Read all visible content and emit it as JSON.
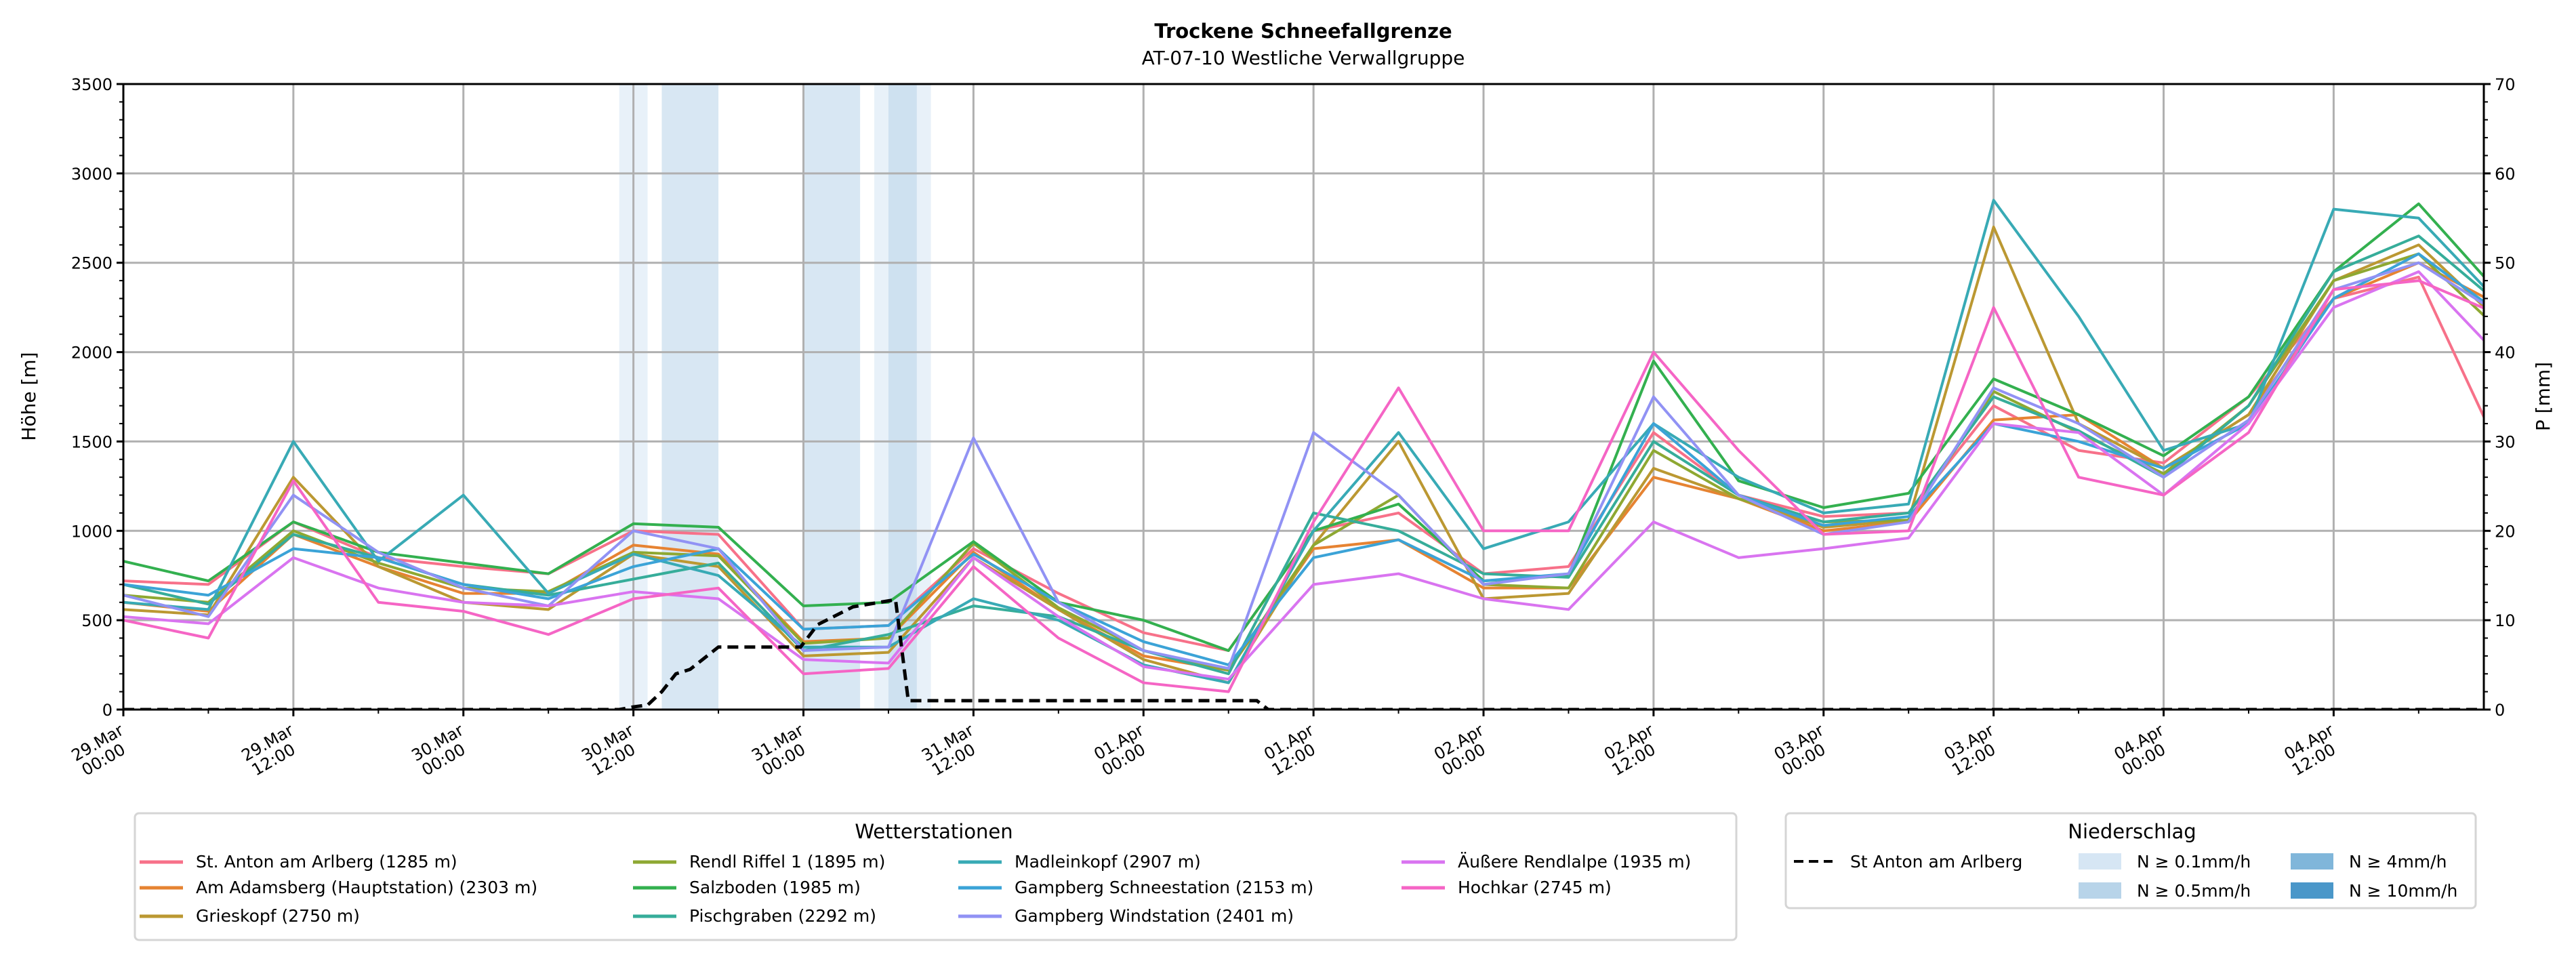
{
  "chart_data": {
    "type": "line",
    "title": "Trockene Schneefallgrenze",
    "subtitle": "AT-07-10 Westliche Verwallgruppe",
    "ylabel": "Höhe [m]",
    "ylabel_right": "P [mm]",
    "ylim": [
      0,
      3500
    ],
    "ylim_right": [
      0,
      70
    ],
    "yticks": [
      0,
      500,
      1000,
      1500,
      2000,
      2500,
      3000,
      3500
    ],
    "yticks_right": [
      0,
      10,
      20,
      30,
      40,
      50,
      60,
      70
    ],
    "x_unit": "hours since 29.Mar 00:00",
    "xlim_hours": [
      0,
      166.6
    ],
    "xticks": [
      {
        "h": 0,
        "l1": "29.Mar",
        "l2": "00:00"
      },
      {
        "h": 12,
        "l1": "29.Mar",
        "l2": "12:00"
      },
      {
        "h": 24,
        "l1": "30.Mar",
        "l2": "00:00"
      },
      {
        "h": 36,
        "l1": "30.Mar",
        "l2": "12:00"
      },
      {
        "h": 48,
        "l1": "31.Mar",
        "l2": "00:00"
      },
      {
        "h": 60,
        "l1": "31.Mar",
        "l2": "12:00"
      },
      {
        "h": 72,
        "l1": "01.Apr",
        "l2": "00:00"
      },
      {
        "h": 84,
        "l1": "01.Apr",
        "l2": "12:00"
      },
      {
        "h": 96,
        "l1": "02.Apr",
        "l2": "00:00"
      },
      {
        "h": 108,
        "l1": "02.Apr",
        "l2": "12:00"
      },
      {
        "h": 120,
        "l1": "03.Apr",
        "l2": "00:00"
      },
      {
        "h": 132,
        "l1": "03.Apr",
        "l2": "12:00"
      },
      {
        "h": 144,
        "l1": "04.Apr",
        "l2": "00:00"
      },
      {
        "h": 156,
        "l1": "04.Apr",
        "l2": "12:00"
      }
    ],
    "grid": true,
    "x_step_hours": 6,
    "series": [
      {
        "name": "St. Anton am Arlberg (1285 m)",
        "color": "#f77189",
        "values": [
          720,
          700,
          1050,
          850,
          800,
          760,
          1000,
          980,
          450,
          470,
          900,
          650,
          430,
          330,
          1000,
          1100,
          760,
          800,
          1550,
          1200,
          1080,
          1100,
          1700,
          1450,
          1380,
          1750,
          2300,
          2420,
          1400
        ]
      },
      {
        "name": "Am Adamsberg (Hauptstation) (2303 m)",
        "color": "#e68332",
        "values": [
          600,
          550,
          980,
          800,
          650,
          650,
          920,
          870,
          380,
          400,
          880,
          560,
          300,
          220,
          900,
          950,
          680,
          680,
          1300,
          1180,
          1000,
          1050,
          1620,
          1650,
          1350,
          1650,
          2300,
          2500,
          2250
        ]
      },
      {
        "name": "Grieskopf (2750 m)",
        "color": "#bb9832",
        "values": [
          560,
          530,
          1300,
          800,
          600,
          560,
          870,
          800,
          300,
          320,
          850,
          560,
          280,
          150,
          920,
          1500,
          620,
          650,
          1350,
          1180,
          1020,
          1060,
          2700,
          1600,
          1350,
          1650,
          2400,
          2600,
          2150
        ]
      },
      {
        "name": "Rendl Riffel 1 (1895 m)",
        "color": "#8ea832",
        "values": [
          640,
          600,
          1000,
          820,
          680,
          660,
          880,
          860,
          370,
          400,
          930,
          570,
          330,
          220,
          920,
          1200,
          700,
          680,
          1450,
          1180,
          1050,
          1060,
          1780,
          1550,
          1320,
          1700,
          2400,
          2550,
          2100
        ]
      },
      {
        "name": "Salzboden (1985 m)",
        "color": "#33b04f",
        "values": [
          830,
          720,
          1050,
          880,
          820,
          760,
          1040,
          1020,
          580,
          600,
          940,
          600,
          500,
          330,
          1000,
          1150,
          720,
          750,
          1950,
          1280,
          1130,
          1210,
          1850,
          1650,
          1420,
          1750,
          2450,
          2830,
          2300
        ]
      },
      {
        "name": "Pischgraben (2292 m)",
        "color": "#36ad9a",
        "values": [
          700,
          590,
          980,
          850,
          700,
          640,
          730,
          820,
          330,
          420,
          580,
          520,
          330,
          200,
          1100,
          1000,
          760,
          740,
          1500,
          1200,
          1050,
          1100,
          1750,
          1560,
          1300,
          1700,
          2450,
          2650,
          2250
        ]
      },
      {
        "name": "Madleinkopf (2907 m)",
        "color": "#38aab5",
        "values": [
          600,
          560,
          1500,
          830,
          1200,
          650,
          870,
          750,
          350,
          350,
          620,
          500,
          250,
          150,
          1000,
          1550,
          900,
          1050,
          1600,
          1300,
          1100,
          1150,
          2850,
          2200,
          1450,
          1600,
          2800,
          2750,
          2250
        ]
      },
      {
        "name": "Gampberg Schneestation (2153 m)",
        "color": "#3ba3d7",
        "values": [
          700,
          640,
          900,
          850,
          700,
          620,
          800,
          900,
          450,
          470,
          870,
          600,
          380,
          250,
          850,
          950,
          720,
          760,
          1600,
          1200,
          1030,
          1080,
          1600,
          1500,
          1350,
          1600,
          2300,
          2550,
          2200
        ]
      },
      {
        "name": "Gampberg Windstation (2401 m)",
        "color": "#9192f4",
        "values": [
          640,
          520,
          1200,
          880,
          680,
          580,
          1000,
          900,
          330,
          350,
          1520,
          600,
          330,
          230,
          1550,
          1200,
          700,
          760,
          1750,
          1200,
          980,
          1050,
          1800,
          1600,
          1300,
          1620,
          2350,
          2500,
          2200
        ]
      },
      {
        "name": "Äußere Rendlalpe (1935 m)",
        "color": "#d974f0",
        "values": [
          520,
          480,
          850,
          680,
          600,
          580,
          660,
          620,
          280,
          260,
          850,
          520,
          240,
          170,
          700,
          760,
          620,
          560,
          1050,
          850,
          900,
          960,
          1600,
          1550,
          1200,
          1600,
          2250,
          2450,
          1950
        ]
      },
      {
        "name": "Hochkar (2745 m)",
        "color": "#f565c5",
        "values": [
          500,
          400,
          1280,
          600,
          550,
          420,
          620,
          680,
          200,
          230,
          800,
          400,
          150,
          100,
          1050,
          1800,
          1000,
          1000,
          2000,
          1450,
          980,
          1000,
          2250,
          1300,
          1200,
          1550,
          2350,
          2400,
          2200
        ]
      }
    ],
    "precip_series": {
      "name": "St Anton am Arlberg",
      "color": "#000000",
      "points": [
        [
          0,
          0
        ],
        [
          35,
          0
        ],
        [
          36,
          0.3
        ],
        [
          37,
          0.5
        ],
        [
          38,
          2
        ],
        [
          39,
          4
        ],
        [
          40,
          4.5
        ],
        [
          42,
          7
        ],
        [
          47.8,
          7
        ],
        [
          49,
          9.5
        ],
        [
          51.5,
          11.5
        ],
        [
          54.5,
          12.3
        ],
        [
          55.4,
          1
        ],
        [
          80,
          1
        ],
        [
          80.8,
          0
        ],
        [
          166.6,
          0
        ]
      ]
    },
    "precip_bands": [
      {
        "start": 35,
        "end": 37,
        "level": "0.1"
      },
      {
        "start": 38,
        "end": 42,
        "level": "0.5"
      },
      {
        "start": 48,
        "end": 52,
        "level": "0.5"
      },
      {
        "start": 53,
        "end": 57,
        "level": "0.1"
      },
      {
        "start": 54,
        "end": 56,
        "level": "0.5"
      }
    ],
    "legend_stations": {
      "title": "Wetterstationen",
      "placement": "bottom-left"
    },
    "legend_precip": {
      "title": "Niederschlag",
      "placement": "bottom-right",
      "line_label": "St Anton am Arlberg",
      "levels": [
        {
          "level": "0.1",
          "label": "N ≥ 0.1mm/h",
          "color": "#d6e6f4"
        },
        {
          "level": "0.5",
          "label": "N ≥ 0.5mm/h",
          "color": "#b8d4e9"
        },
        {
          "level": "4",
          "label": "N ≥ 4mm/h",
          "color": "#80b6da"
        },
        {
          "level": "10",
          "label": "N ≥ 10mm/h",
          "color": "#4a97c9"
        }
      ]
    }
  }
}
